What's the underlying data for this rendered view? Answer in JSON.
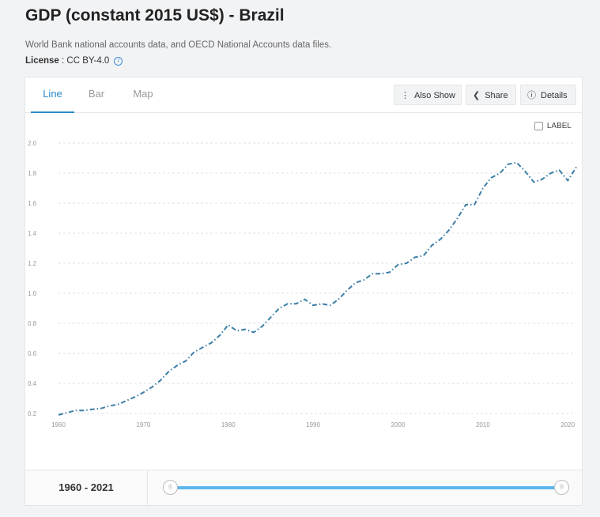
{
  "header": {
    "title": "GDP (constant 2015 US$) - Brazil",
    "source": "World Bank national accounts data, and OECD National Accounts data files.",
    "license_label": "License",
    "license_value": " : CC BY-4.0"
  },
  "tabs": [
    {
      "label": "Line",
      "active": true
    },
    {
      "label": "Bar",
      "active": false
    },
    {
      "label": "Map",
      "active": false
    }
  ],
  "toolbar": {
    "also_show_label": "Also Show",
    "share_label": "Share",
    "details_label": "Details"
  },
  "label_toggle": "LABEL",
  "range": {
    "label": "1960 - 2021",
    "start_year": 1960,
    "end_year": 2021
  },
  "colors": {
    "line": "#3b7ea7",
    "accent": "#2a8ac6",
    "slider": "#5fb7ee",
    "grid": "#e2e2e2"
  },
  "chart_data": {
    "type": "line",
    "title": "",
    "xlabel": "",
    "ylabel": "",
    "xlim": [
      1960,
      2021
    ],
    "ylim": [
      0.2,
      2.0
    ],
    "x_ticks": [
      "1960",
      "1970",
      "1980",
      "1990",
      "2000",
      "2010",
      "2020"
    ],
    "y_ticks": [
      "0.2",
      "0.4",
      "0.6",
      "0.8",
      "1.0",
      "1.2",
      "1.4",
      "1.6",
      "1.8",
      "2.0"
    ],
    "grid": true,
    "line_style": "dash-dot",
    "series": [
      {
        "x": [
          1960,
          1961,
          1962,
          1963,
          1964,
          1965,
          1966,
          1967,
          1968,
          1969,
          1970,
          1971,
          1972,
          1973,
          1974,
          1975,
          1976,
          1977,
          1978,
          1979,
          1980,
          1981,
          1982,
          1983,
          1984,
          1985,
          1986,
          1987,
          1988,
          1989,
          1990,
          1991,
          1992,
          1993,
          1994,
          1995,
          1996,
          1997,
          1998,
          1999,
          2000,
          2001,
          2002,
          2003,
          2004,
          2005,
          2006,
          2007,
          2008,
          2009,
          2010,
          2011,
          2012,
          2013,
          2014,
          2015,
          2016,
          2017,
          2018,
          2019,
          2020,
          2021
        ],
        "values": [
          0.19,
          0.205,
          0.22,
          0.22,
          0.228,
          0.233,
          0.25,
          0.26,
          0.285,
          0.31,
          0.34,
          0.375,
          0.42,
          0.48,
          0.52,
          0.55,
          0.61,
          0.64,
          0.67,
          0.72,
          0.79,
          0.75,
          0.76,
          0.74,
          0.78,
          0.84,
          0.9,
          0.93,
          0.93,
          0.96,
          0.92,
          0.93,
          0.92,
          0.96,
          1.02,
          1.07,
          1.09,
          1.13,
          1.13,
          1.14,
          1.19,
          1.2,
          1.24,
          1.25,
          1.32,
          1.36,
          1.42,
          1.5,
          1.59,
          1.59,
          1.7,
          1.77,
          1.8,
          1.86,
          1.87,
          1.81,
          1.74,
          1.76,
          1.8,
          1.82,
          1.75,
          1.84
        ]
      }
    ]
  }
}
